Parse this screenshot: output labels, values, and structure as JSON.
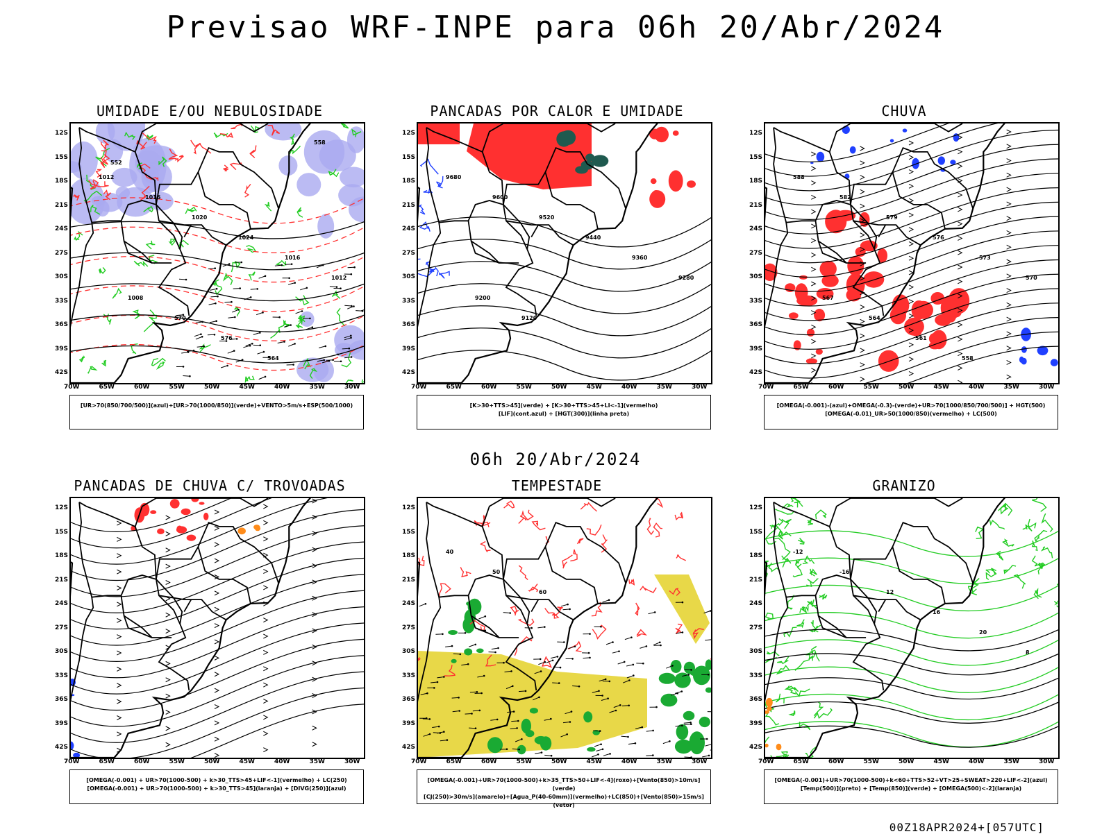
{
  "header": {
    "title": "Previsao WRF-INPE  para 06h 20/Abr/2024"
  },
  "mid_title": "06h 20/Abr/2024",
  "footer": "00Z18APR2024+[057UTC]",
  "axes": {
    "lat_labels": [
      "12S",
      "15S",
      "18S",
      "21S",
      "24S",
      "27S",
      "30S",
      "33S",
      "36S",
      "39S",
      "42S"
    ],
    "lon_labels": [
      "70W",
      "65W",
      "60W",
      "55W",
      "50W",
      "45W",
      "40W",
      "35W",
      "30W"
    ]
  },
  "panels": [
    {
      "title": "UMIDADE E/OU NEBULOSIDADE",
      "legend": [
        "[UR>70(850/700/500)](azul)+[UR>70(1000/850)](verde)+VENTO>5m/s+ESP(500/1000)"
      ],
      "labels": [
        "1012",
        "1016",
        "1020",
        "1024",
        "1016",
        "1012",
        "1008",
        "570",
        "576",
        "564",
        "558",
        "552"
      ]
    },
    {
      "title": "PANCADAS POR CALOR E UMIDADE",
      "legend": [
        "[K>30+TTS>45](verde) + [K>30+TTS>45+LI<-1](vermelho)",
        "[LIF](cont.azul) + [HGT(300)](linha preta)"
      ],
      "labels": [
        "9680",
        "9600",
        "9520",
        "9440",
        "9360",
        "9280",
        "9200",
        "9120"
      ]
    },
    {
      "title": "CHUVA",
      "legend": [
        "[OMEGA(-0.001)-(azul)+OMEGA(-0.3)-(verde)+UR>70(1000/850/700/500)] + HGT(500)",
        "[OMEGA(-0.01)_UR>50(1000/850)(vermelho) + LC(500)"
      ],
      "labels": [
        "588",
        "582",
        "579",
        "576",
        "573",
        "570",
        "567",
        "564",
        "561",
        "558"
      ]
    },
    {
      "title": "PANCADAS DE CHUVA C/ TROVOADAS",
      "legend": [
        "[OMEGA(-0.001) + UR>70(1000-500) + k>30_TTS>45+LIF<-1](vermelho) + LC(250)",
        "[OMEGA(-0.001) + UR>70(1000-500) + k>30_TTS>45](laranja) + [DIVG(250)](azul)"
      ],
      "labels": []
    },
    {
      "title": "TEMPESTADE",
      "legend": [
        "[OMEGA(-0.001)+UR>70(1000-500)+k>35_TTS>50+LIF<-4](roxo)+[Vento(850)>10m/s](verde)",
        "[CJ(250)>30m/s](amarelo)+[Agua_P(40-60mm)](vermelho)+LC(850)+[Vento(850)>15m/s](vetor)"
      ],
      "labels": [
        "40",
        "50",
        "60"
      ]
    },
    {
      "title": "GRANIZO",
      "legend": [
        "[OMEGA(-0.001)+UR>70(1000-500)+k<60+TTS>52+VT>25+SWEAT>220+LIF<-2](azul)",
        "[Temp(500)](preto) + [Temp(850)](verde) + [OMEGA(500)<-2](laranja)"
      ],
      "labels": [
        "-12",
        "-16",
        "12",
        "16",
        "20",
        "8"
      ]
    }
  ],
  "colors": {
    "blue_fill": "#aaaaf0",
    "green": "#22cc22",
    "red": "#ff3030",
    "dark_green": "#1f5a4f",
    "yellow": "#e8d848",
    "orange": "#ff8c1a",
    "contour_blue": "#2040ff"
  }
}
